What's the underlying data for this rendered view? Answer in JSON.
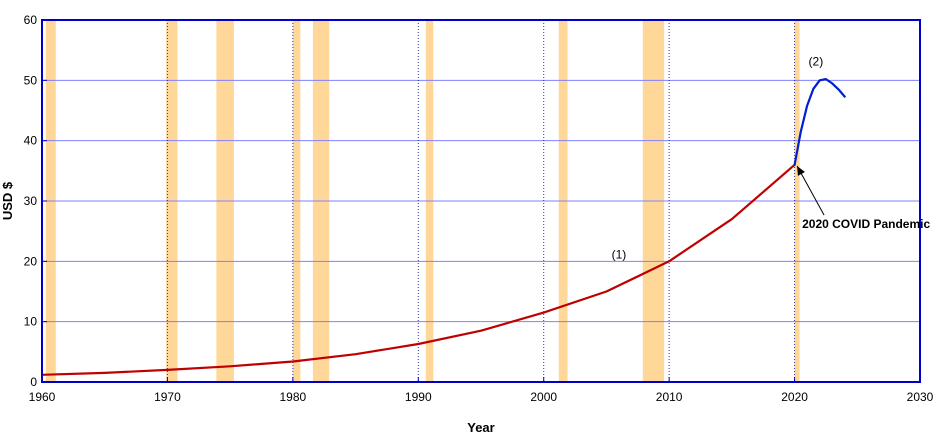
{
  "chart_data": {
    "type": "line",
    "title": "",
    "xlabel": "Year",
    "ylabel": "USD $",
    "xlim": [
      1960,
      2030
    ],
    "ylim": [
      0,
      60
    ],
    "x_ticks": [
      1960,
      1970,
      1980,
      1990,
      2000,
      2010,
      2020,
      2030
    ],
    "y_ticks": [
      0,
      10,
      20,
      30,
      40,
      50,
      60
    ],
    "grid": true,
    "legend": "none",
    "colors": {
      "frame": "#0000c8",
      "grid": "#8080ff",
      "band": "#ffd899",
      "series1": "#c00000",
      "series2": "#0020d0",
      "dotted_vline": "#3030a0"
    },
    "shaded_bands": [
      [
        1960.3,
        1961.1
      ],
      [
        1969.9,
        1970.8
      ],
      [
        1973.9,
        1975.3
      ],
      [
        1980.0,
        1980.6
      ],
      [
        1981.6,
        1982.9
      ],
      [
        1990.6,
        1991.2
      ],
      [
        2001.2,
        2001.9
      ],
      [
        2007.9,
        2009.6
      ],
      [
        2020.0,
        2020.4
      ]
    ],
    "dotted_vlines": [
      1970,
      1980,
      1990,
      2000,
      2010,
      2020
    ],
    "series": [
      {
        "label": "(1)",
        "x": [
          1960,
          1965,
          1970,
          1975,
          1980,
          1985,
          1990,
          1995,
          2000,
          2005,
          2010,
          2015,
          2020
        ],
        "y": [
          1.2,
          1.5,
          2.0,
          2.6,
          3.4,
          4.6,
          6.3,
          8.5,
          11.5,
          15.0,
          20.0,
          27.0,
          36.0
        ]
      },
      {
        "label": "(2)",
        "x": [
          2020,
          2020.5,
          2021,
          2021.5,
          2022,
          2022.5,
          2023,
          2023.5,
          2024
        ],
        "y": [
          36.0,
          41.5,
          45.8,
          48.6,
          50.0,
          50.2,
          49.5,
          48.5,
          47.3
        ]
      }
    ],
    "annotations": {
      "label1": {
        "text": "(1)",
        "x": 2006,
        "y": 20.5
      },
      "label2": {
        "text": "(2)",
        "x": 2021.7,
        "y": 52.5
      },
      "covid": {
        "text": "2020 COVID Pandemic",
        "x": 2020.6,
        "y": 25.5,
        "arrow_to_x": 2020.2,
        "arrow_to_y": 35.8
      }
    }
  }
}
